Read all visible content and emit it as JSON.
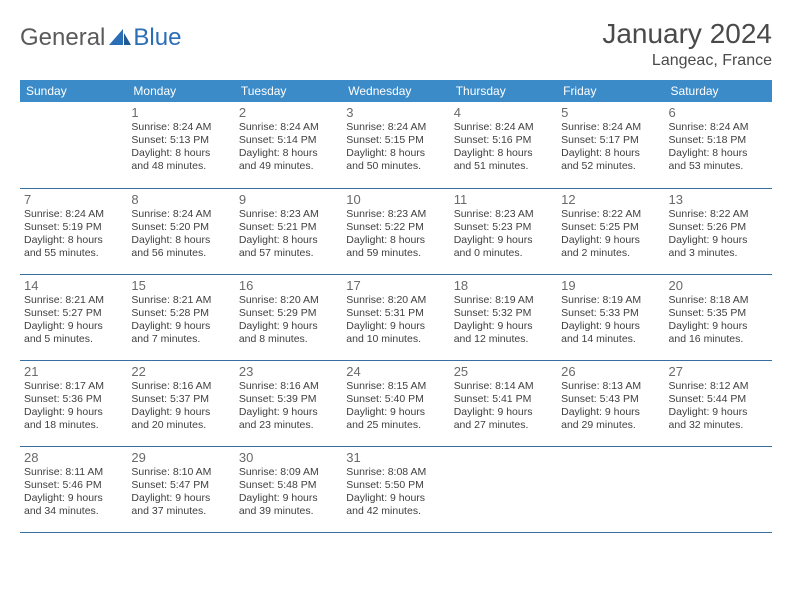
{
  "brand": {
    "text_a": "General",
    "text_b": "Blue"
  },
  "title": "January 2024",
  "location": "Langeac, France",
  "colors": {
    "header_bg": "#3b8bc9",
    "header_text": "#ffffff",
    "row_border": "#3b6ea0",
    "text": "#404040",
    "daynum": "#6a6a6a",
    "brand_gray": "#5a5a5a",
    "brand_blue": "#2a6eb6",
    "background": "#ffffff"
  },
  "fonts": {
    "title_size": 28,
    "location_size": 16,
    "header_size": 12,
    "daynum_size": 13,
    "body_size": 10.5
  },
  "day_headers": [
    "Sunday",
    "Monday",
    "Tuesday",
    "Wednesday",
    "Thursday",
    "Friday",
    "Saturday"
  ],
  "weeks": [
    [
      {
        "num": "",
        "lines": []
      },
      {
        "num": "1",
        "lines": [
          "Sunrise: 8:24 AM",
          "Sunset: 5:13 PM",
          "Daylight: 8 hours",
          "and 48 minutes."
        ]
      },
      {
        "num": "2",
        "lines": [
          "Sunrise: 8:24 AM",
          "Sunset: 5:14 PM",
          "Daylight: 8 hours",
          "and 49 minutes."
        ]
      },
      {
        "num": "3",
        "lines": [
          "Sunrise: 8:24 AM",
          "Sunset: 5:15 PM",
          "Daylight: 8 hours",
          "and 50 minutes."
        ]
      },
      {
        "num": "4",
        "lines": [
          "Sunrise: 8:24 AM",
          "Sunset: 5:16 PM",
          "Daylight: 8 hours",
          "and 51 minutes."
        ]
      },
      {
        "num": "5",
        "lines": [
          "Sunrise: 8:24 AM",
          "Sunset: 5:17 PM",
          "Daylight: 8 hours",
          "and 52 minutes."
        ]
      },
      {
        "num": "6",
        "lines": [
          "Sunrise: 8:24 AM",
          "Sunset: 5:18 PM",
          "Daylight: 8 hours",
          "and 53 minutes."
        ]
      }
    ],
    [
      {
        "num": "7",
        "lines": [
          "Sunrise: 8:24 AM",
          "Sunset: 5:19 PM",
          "Daylight: 8 hours",
          "and 55 minutes."
        ]
      },
      {
        "num": "8",
        "lines": [
          "Sunrise: 8:24 AM",
          "Sunset: 5:20 PM",
          "Daylight: 8 hours",
          "and 56 minutes."
        ]
      },
      {
        "num": "9",
        "lines": [
          "Sunrise: 8:23 AM",
          "Sunset: 5:21 PM",
          "Daylight: 8 hours",
          "and 57 minutes."
        ]
      },
      {
        "num": "10",
        "lines": [
          "Sunrise: 8:23 AM",
          "Sunset: 5:22 PM",
          "Daylight: 8 hours",
          "and 59 minutes."
        ]
      },
      {
        "num": "11",
        "lines": [
          "Sunrise: 8:23 AM",
          "Sunset: 5:23 PM",
          "Daylight: 9 hours",
          "and 0 minutes."
        ]
      },
      {
        "num": "12",
        "lines": [
          "Sunrise: 8:22 AM",
          "Sunset: 5:25 PM",
          "Daylight: 9 hours",
          "and 2 minutes."
        ]
      },
      {
        "num": "13",
        "lines": [
          "Sunrise: 8:22 AM",
          "Sunset: 5:26 PM",
          "Daylight: 9 hours",
          "and 3 minutes."
        ]
      }
    ],
    [
      {
        "num": "14",
        "lines": [
          "Sunrise: 8:21 AM",
          "Sunset: 5:27 PM",
          "Daylight: 9 hours",
          "and 5 minutes."
        ]
      },
      {
        "num": "15",
        "lines": [
          "Sunrise: 8:21 AM",
          "Sunset: 5:28 PM",
          "Daylight: 9 hours",
          "and 7 minutes."
        ]
      },
      {
        "num": "16",
        "lines": [
          "Sunrise: 8:20 AM",
          "Sunset: 5:29 PM",
          "Daylight: 9 hours",
          "and 8 minutes."
        ]
      },
      {
        "num": "17",
        "lines": [
          "Sunrise: 8:20 AM",
          "Sunset: 5:31 PM",
          "Daylight: 9 hours",
          "and 10 minutes."
        ]
      },
      {
        "num": "18",
        "lines": [
          "Sunrise: 8:19 AM",
          "Sunset: 5:32 PM",
          "Daylight: 9 hours",
          "and 12 minutes."
        ]
      },
      {
        "num": "19",
        "lines": [
          "Sunrise: 8:19 AM",
          "Sunset: 5:33 PM",
          "Daylight: 9 hours",
          "and 14 minutes."
        ]
      },
      {
        "num": "20",
        "lines": [
          "Sunrise: 8:18 AM",
          "Sunset: 5:35 PM",
          "Daylight: 9 hours",
          "and 16 minutes."
        ]
      }
    ],
    [
      {
        "num": "21",
        "lines": [
          "Sunrise: 8:17 AM",
          "Sunset: 5:36 PM",
          "Daylight: 9 hours",
          "and 18 minutes."
        ]
      },
      {
        "num": "22",
        "lines": [
          "Sunrise: 8:16 AM",
          "Sunset: 5:37 PM",
          "Daylight: 9 hours",
          "and 20 minutes."
        ]
      },
      {
        "num": "23",
        "lines": [
          "Sunrise: 8:16 AM",
          "Sunset: 5:39 PM",
          "Daylight: 9 hours",
          "and 23 minutes."
        ]
      },
      {
        "num": "24",
        "lines": [
          "Sunrise: 8:15 AM",
          "Sunset: 5:40 PM",
          "Daylight: 9 hours",
          "and 25 minutes."
        ]
      },
      {
        "num": "25",
        "lines": [
          "Sunrise: 8:14 AM",
          "Sunset: 5:41 PM",
          "Daylight: 9 hours",
          "and 27 minutes."
        ]
      },
      {
        "num": "26",
        "lines": [
          "Sunrise: 8:13 AM",
          "Sunset: 5:43 PM",
          "Daylight: 9 hours",
          "and 29 minutes."
        ]
      },
      {
        "num": "27",
        "lines": [
          "Sunrise: 8:12 AM",
          "Sunset: 5:44 PM",
          "Daylight: 9 hours",
          "and 32 minutes."
        ]
      }
    ],
    [
      {
        "num": "28",
        "lines": [
          "Sunrise: 8:11 AM",
          "Sunset: 5:46 PM",
          "Daylight: 9 hours",
          "and 34 minutes."
        ]
      },
      {
        "num": "29",
        "lines": [
          "Sunrise: 8:10 AM",
          "Sunset: 5:47 PM",
          "Daylight: 9 hours",
          "and 37 minutes."
        ]
      },
      {
        "num": "30",
        "lines": [
          "Sunrise: 8:09 AM",
          "Sunset: 5:48 PM",
          "Daylight: 9 hours",
          "and 39 minutes."
        ]
      },
      {
        "num": "31",
        "lines": [
          "Sunrise: 8:08 AM",
          "Sunset: 5:50 PM",
          "Daylight: 9 hours",
          "and 42 minutes."
        ]
      },
      {
        "num": "",
        "lines": []
      },
      {
        "num": "",
        "lines": []
      },
      {
        "num": "",
        "lines": []
      }
    ]
  ]
}
